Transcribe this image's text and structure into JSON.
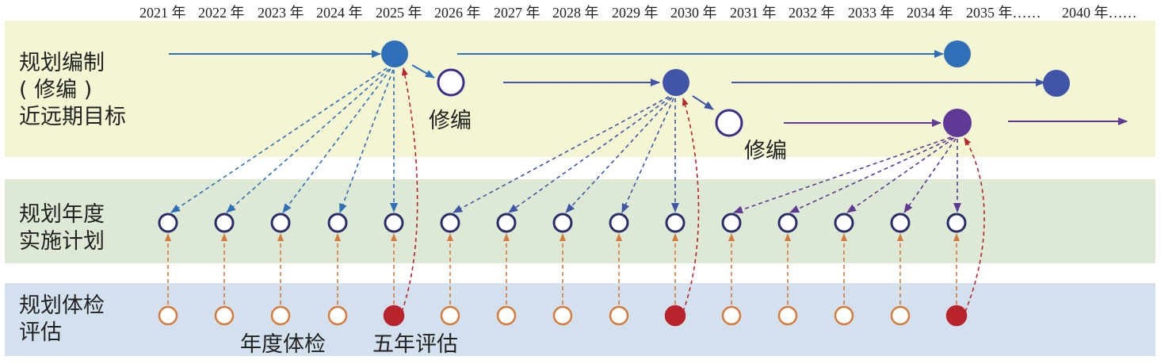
{
  "timeline": {
    "years": [
      "2021 年",
      "2022 年",
      "2023 年",
      "2024 年",
      "2025 年",
      "2026 年",
      "2027 年",
      "2028 年",
      "2029 年",
      "2030 年",
      "2031 年",
      "2032 年",
      "2033 年",
      "2034 年",
      "2035 年……",
      "2040 年……"
    ]
  },
  "rows": {
    "plan": {
      "label_lines": [
        "规划编制",
        "( 修编 )",
        "近远期目标"
      ]
    },
    "annual": {
      "label_lines": [
        "规划年度",
        "实施计划"
      ]
    },
    "evaluation": {
      "label_lines": [
        "规划体检",
        "评估"
      ]
    }
  },
  "annotations": {
    "revision_1": "修编",
    "revision_2": "修编",
    "annual_check": "年度体检",
    "five_year_eval": "五年评估"
  },
  "colors": {
    "plan_cycle_1": "#2f6fb8",
    "plan_cycle_2": "#4055a8",
    "plan_cycle_3": "#5e3a96",
    "revision_outline": "#3a2f8a",
    "annual_outline": "#2b2d6a",
    "annual_check_outline": "#d67a3c",
    "five_year_fill": "#b8242c",
    "band_plan": "#f4f5d2",
    "band_annual": "#dde9d5",
    "band_eval": "#d3e1ee"
  }
}
